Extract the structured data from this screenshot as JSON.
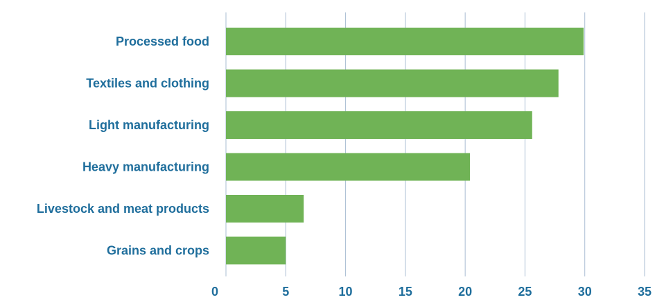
{
  "chart_data": {
    "type": "bar",
    "orientation": "horizontal",
    "title": "",
    "xlabel": "",
    "ylabel": "",
    "categories": [
      "Processed food",
      "Textiles and clothing",
      "Light manufacturing",
      "Heavy manufacturing",
      "Livestock and meat products",
      "Grains and crops"
    ],
    "values": [
      29.9,
      27.8,
      25.6,
      20.4,
      6.5,
      5.0
    ],
    "xlim": [
      0,
      35
    ],
    "xticks": [
      0,
      5,
      10,
      15,
      20,
      25,
      30,
      35
    ],
    "grid": "vertical",
    "legend": "none",
    "colors": {
      "bar": "#70b356",
      "label": "#1f6e9c",
      "grid": "#a9bdd3"
    }
  }
}
